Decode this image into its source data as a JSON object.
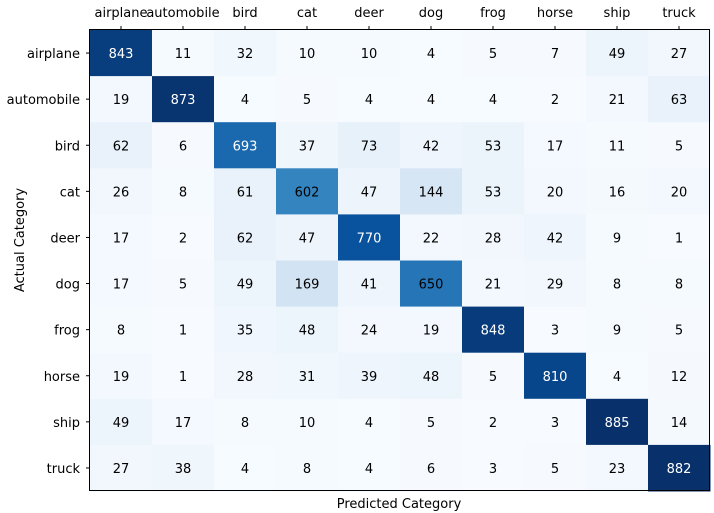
{
  "chart_data": {
    "type": "heatmap",
    "xlabel": "Predicted Category",
    "ylabel": "Actual Category",
    "categories": [
      "airplane",
      "automobile",
      "bird",
      "cat",
      "deer",
      "dog",
      "frog",
      "horse",
      "ship",
      "truck"
    ],
    "matrix": [
      [
        843,
        11,
        32,
        10,
        10,
        4,
        5,
        7,
        49,
        27
      ],
      [
        19,
        873,
        4,
        5,
        4,
        4,
        4,
        2,
        21,
        63
      ],
      [
        62,
        6,
        693,
        37,
        73,
        42,
        53,
        17,
        11,
        5
      ],
      [
        26,
        8,
        61,
        602,
        47,
        144,
        53,
        20,
        16,
        20
      ],
      [
        17,
        2,
        62,
        47,
        770,
        22,
        28,
        42,
        9,
        1
      ],
      [
        17,
        5,
        49,
        169,
        41,
        650,
        21,
        29,
        8,
        8
      ],
      [
        8,
        1,
        35,
        48,
        24,
        19,
        848,
        3,
        9,
        5
      ],
      [
        19,
        1,
        28,
        31,
        39,
        48,
        5,
        810,
        4,
        12
      ],
      [
        49,
        17,
        8,
        10,
        4,
        5,
        2,
        3,
        885,
        14
      ],
      [
        27,
        38,
        4,
        8,
        4,
        6,
        3,
        5,
        23,
        882
      ]
    ],
    "colormap": "Blues",
    "xticks_position": "top",
    "grid": false
  }
}
